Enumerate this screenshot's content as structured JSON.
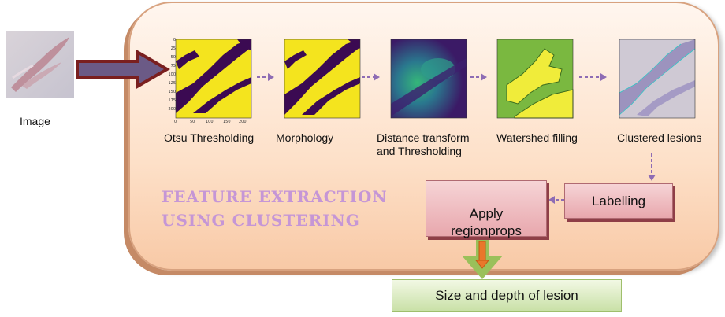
{
  "input": {
    "label": "Image"
  },
  "panel_title": {
    "line1": "FEATURE EXTRACTION",
    "line2": "USING CLUSTERING"
  },
  "steps": [
    {
      "caption": "Otsu Thresholding"
    },
    {
      "caption": "Morphology"
    },
    {
      "caption": "Distance transform\nand Thresholding"
    },
    {
      "caption": "Watershed filling"
    },
    {
      "caption": "Clustered lesions"
    }
  ],
  "y_ticks": [
    "0",
    "25",
    "50",
    "75",
    "100",
    "125",
    "150",
    "175",
    "200"
  ],
  "x_ticks": [
    "0",
    "50",
    "100",
    "150",
    "200"
  ],
  "labelling": {
    "label": "Labelling"
  },
  "regionprops": {
    "label": "Apply\nregionprops"
  },
  "result": {
    "label": "Size and depth of lesion"
  },
  "colors": {
    "yellow": "#f4e41e",
    "purple": "#3b0a52",
    "watershed_green": "#7ab840",
    "watershed_yellow": "#f0ec3a",
    "arrow_purple": "#8e6cb4"
  }
}
